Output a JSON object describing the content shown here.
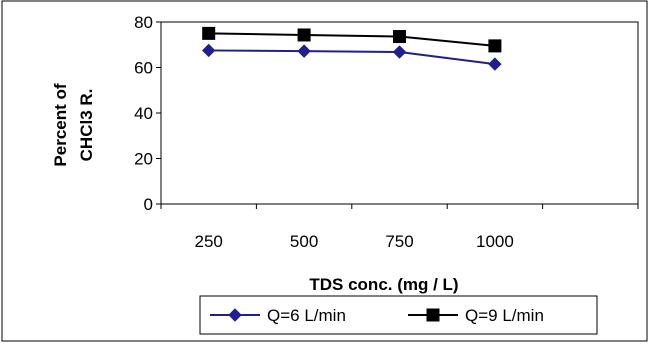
{
  "chart_data": {
    "type": "line",
    "title": "",
    "xlabel": "TDS conc. (mg / L)",
    "ylabel_lines": [
      "Percent of",
      "CHCl3 R."
    ],
    "categories": [
      "250",
      "500",
      "750",
      "1000"
    ],
    "extra_category_slots": 1,
    "y_ticks": [
      "0",
      "20",
      "40",
      "60",
      "80"
    ],
    "ylim": [
      0,
      80
    ],
    "grid": false,
    "legend_position": "bottom",
    "series": [
      {
        "name": "Q=6 L/min",
        "values": [
          67.5,
          67.2,
          66.8,
          61.5
        ],
        "color": "#1f1f8f",
        "marker": "diamond"
      },
      {
        "name": "Q=9 L/min",
        "values": [
          75.0,
          74.3,
          73.6,
          69.5
        ],
        "color": "#000000",
        "marker": "square"
      }
    ]
  }
}
